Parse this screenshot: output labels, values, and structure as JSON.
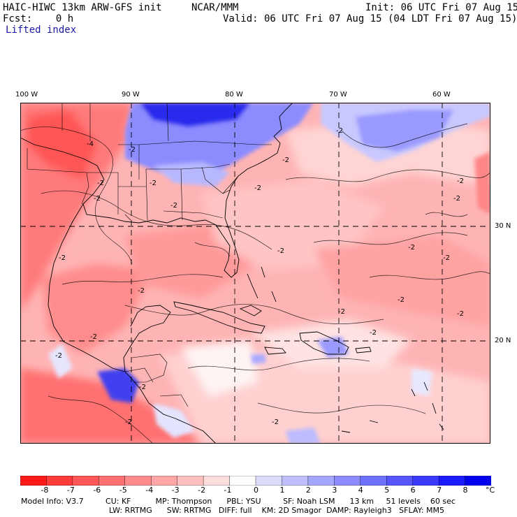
{
  "header": {
    "model": "HAIC-HIWC 13km ARW-GFS init",
    "org": "NCAR/MMM",
    "init": "Init: 06 UTC Fri 07 Aug 15",
    "fcst": "Fcst:    0 h",
    "valid": "Valid: 06 UTC Fri 07 Aug 15 (04 LDT Fri 07 Aug 15)",
    "field": "Lifted index"
  },
  "axes": {
    "lon_labels": [
      "100 W",
      "90 W",
      "80 W",
      "70 W",
      "60 W"
    ],
    "lat_labels": [
      "30 N",
      "20 N"
    ]
  },
  "contour_labels": [
    "-2",
    "-2",
    "-2",
    "-2",
    "-2",
    "-2",
    "-2",
    "-2",
    "-2",
    "-2",
    "-2",
    "-2",
    "-2",
    "-2",
    "-2",
    "-2",
    "-2",
    "-2",
    "-2",
    "-2",
    "-2",
    "-2",
    "-4",
    "-2",
    "-2"
  ],
  "colorbar": {
    "unit": "°C",
    "ticks": [
      "-8",
      "-7",
      "-6",
      "-5",
      "-4",
      "-3",
      "-2",
      "-1",
      "0",
      "1",
      "2",
      "3",
      "4",
      "5",
      "6",
      "7",
      "8"
    ],
    "colors": [
      "#ff1a1a",
      "#ff3a3a",
      "#ff5656",
      "#ff7070",
      "#ff8c8c",
      "#ffa6a6",
      "#ffc0c0",
      "#ffdcdc",
      "#ffffff",
      "#dcdcff",
      "#c0c0ff",
      "#a6a6ff",
      "#8c8cff",
      "#7070ff",
      "#5656ff",
      "#3a3aff",
      "#1a1aff",
      "#0000ee"
    ]
  },
  "model_info": {
    "line1": "Model Info: V3.7         CU: KF          MP: Thompson      PBL: YSU         SF: Noah LSM      13 km     51 levels    60 sec",
    "line2": "LW: RRTMG      SW: RRTMG   DIFF: full    KM: 2D Smagor  DAMP: Rayleigh3   SFLAY: MM5"
  }
}
